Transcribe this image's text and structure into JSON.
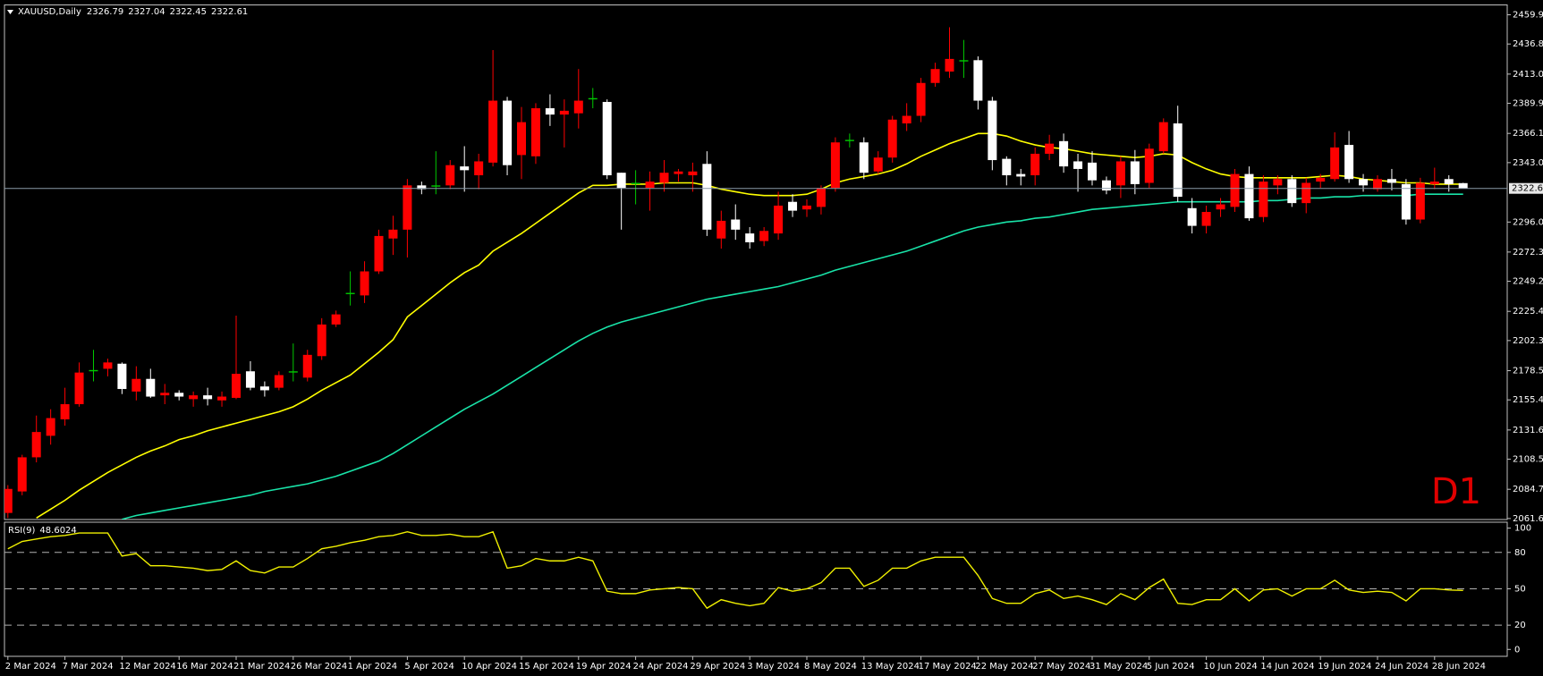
{
  "header": {
    "symbol": "XAUUSD,Daily"
  },
  "chart_data": [
    {
      "type": "candlestick",
      "categories": [
        "2 Mar 2024",
        null,
        null,
        null,
        "7 Mar 2024",
        null,
        null,
        null,
        "12 Mar 2024",
        null,
        null,
        null,
        "16 Mar 2024",
        null,
        null,
        null,
        "21 Mar 2024",
        null,
        null,
        null,
        "26 Mar 2024",
        null,
        null,
        null,
        "1 Apr 2024",
        null,
        null,
        null,
        "5 Apr 2024",
        null,
        null,
        null,
        "10 Apr 2024",
        null,
        null,
        null,
        "15 Apr 2024",
        null,
        null,
        null,
        "19 Apr 2024",
        null,
        null,
        null,
        "24 Apr 2024",
        null,
        null,
        null,
        "29 Apr 2024",
        null,
        null,
        null,
        "3 May 2024",
        null,
        null,
        null,
        "8 May 2024",
        null,
        null,
        null,
        "13 May 2024",
        null,
        null,
        null,
        "17 May 2024",
        null,
        null,
        null,
        "22 May 2024",
        null,
        null,
        null,
        "27 May 2024",
        null,
        null,
        null,
        "31 May 2024",
        null,
        null,
        null,
        "5 Jun 2024",
        null,
        null,
        null,
        "10 Jun 2024",
        null,
        null,
        null,
        "14 Jun 2024",
        null,
        null,
        null,
        "19 Jun 2024",
        null,
        null,
        null,
        "24 Jun 2024",
        null,
        null,
        null,
        "28 Jun 2024",
        null,
        null
      ],
      "open": [
        2066,
        2083,
        2110,
        2127,
        2140,
        2152,
        2178,
        2180,
        2184,
        2162,
        2172,
        2159,
        2161,
        2156,
        2159,
        2155,
        2157,
        2178,
        2166,
        2165,
        2178,
        2173,
        2190,
        2215,
        2239,
        2238,
        2257,
        2283,
        2290,
        2325,
        2324,
        2325,
        2340,
        2333,
        2343,
        2392,
        2349,
        2348,
        2386,
        2381,
        2382,
        2393,
        2391,
        2335,
        2326,
        2323,
        2327,
        2334,
        2333,
        2342,
        2283,
        2298,
        2287,
        2281,
        2287,
        2312,
        2306,
        2308,
        2323,
        2360,
        2359,
        2336,
        2347,
        2374,
        2380,
        2406,
        2415,
        2423,
        2424,
        2392,
        2346,
        2334,
        2333,
        2350,
        2360,
        2344,
        2343,
        2329,
        2325,
        2344,
        2327,
        2352,
        2374,
        2307,
        2293,
        2306,
        2308,
        2334,
        2300,
        2325,
        2330,
        2311,
        2328,
        2330,
        2357,
        2330,
        2322,
        2330,
        2326,
        2298,
        2326,
        2330,
        2326.79
      ],
      "high": [
        2088,
        2112,
        2143,
        2148,
        2165,
        2185,
        2195,
        2188,
        2185,
        2182,
        2180,
        2168,
        2163,
        2162,
        2165,
        2162,
        2222,
        2186,
        2170,
        2178,
        2200,
        2195,
        2220,
        2226,
        2257,
        2265,
        2290,
        2301,
        2330,
        2328,
        2352,
        2345,
        2356,
        2350,
        2432,
        2395,
        2387,
        2390,
        2397,
        2393,
        2417,
        2402,
        2393,
        2335,
        2337,
        2336,
        2345,
        2338,
        2343,
        2352,
        2305,
        2310,
        2292,
        2292,
        2320,
        2318,
        2314,
        2325,
        2363,
        2366,
        2363,
        2352,
        2380,
        2390,
        2410,
        2422,
        2450,
        2440,
        2427,
        2395,
        2348,
        2338,
        2355,
        2365,
        2366,
        2350,
        2352,
        2332,
        2348,
        2353,
        2358,
        2378,
        2388,
        2315,
        2309,
        2315,
        2338,
        2340,
        2333,
        2333,
        2333,
        2331,
        2334,
        2367,
        2368,
        2334,
        2333,
        2338,
        2330,
        2331,
        2339,
        2333,
        2327.04
      ],
      "low": [
        2062,
        2080,
        2106,
        2120,
        2135,
        2150,
        2170,
        2174,
        2160,
        2155,
        2157,
        2152,
        2155,
        2150,
        2151,
        2150,
        2156,
        2163,
        2158,
        2163,
        2170,
        2170,
        2187,
        2213,
        2230,
        2232,
        2255,
        2270,
        2268,
        2318,
        2318,
        2322,
        2320,
        2322,
        2340,
        2333,
        2330,
        2342,
        2372,
        2355,
        2370,
        2386,
        2330,
        2290,
        2310,
        2305,
        2320,
        2328,
        2320,
        2285,
        2275,
        2282,
        2275,
        2277,
        2282,
        2300,
        2300,
        2302,
        2320,
        2355,
        2330,
        2334,
        2343,
        2368,
        2375,
        2403,
        2410,
        2410,
        2385,
        2337,
        2325,
        2325,
        2325,
        2345,
        2335,
        2320,
        2325,
        2318,
        2315,
        2318,
        2323,
        2350,
        2312,
        2287,
        2287,
        2300,
        2304,
        2297,
        2296,
        2318,
        2308,
        2303,
        2323,
        2328,
        2327,
        2320,
        2320,
        2321,
        2294,
        2295,
        2322,
        2320,
        2322.45
      ],
      "close": [
        2085,
        2110,
        2130,
        2141,
        2152,
        2177,
        2179,
        2185,
        2164,
        2172,
        2158,
        2161,
        2158,
        2159,
        2156,
        2158,
        2176,
        2165,
        2163,
        2175,
        2177,
        2191,
        2215,
        2223,
        2240,
        2257,
        2285,
        2290,
        2325,
        2322,
        2325,
        2341,
        2337,
        2344,
        2392,
        2341,
        2375,
        2386,
        2381,
        2384,
        2392,
        2394,
        2333,
        2323,
        2327,
        2328,
        2335,
        2336,
        2336,
        2290,
        2297,
        2290,
        2280,
        2289,
        2309,
        2305,
        2309,
        2323,
        2359,
        2361,
        2335,
        2347,
        2377,
        2380,
        2406,
        2417,
        2425,
        2424,
        2392,
        2345,
        2333,
        2332,
        2350,
        2358,
        2340,
        2338,
        2329,
        2321,
        2344,
        2326,
        2354,
        2375,
        2316,
        2293,
        2304,
        2310,
        2334,
        2299,
        2328,
        2330,
        2311,
        2327,
        2331,
        2355,
        2330,
        2325,
        2330,
        2327,
        2298,
        2327,
        2328,
        2326,
        2322.61
      ],
      "up_color": "#ff0000",
      "down_color": "#ffffff",
      "doji_color": "#00c800",
      "series": [
        {
          "color": "#ffff00",
          "values": [
            null,
            null,
            2062,
            2069,
            2076,
            2084,
            2091,
            2098,
            2104,
            2110,
            2115,
            2119,
            2124,
            2127,
            2131,
            2134,
            2137,
            2140,
            2143,
            2146,
            2150,
            2156,
            2163,
            2169,
            2175,
            2184,
            2193,
            2203,
            2221,
            2230,
            2239,
            2248,
            2256,
            2262,
            2273,
            2280,
            2287,
            2295,
            2303,
            2311,
            2319,
            2325,
            2325,
            2326,
            2326,
            2326,
            2327,
            2327,
            2327,
            2325,
            2322,
            2320,
            2318,
            2317,
            2317,
            2317,
            2318,
            2322,
            2327,
            2330,
            2332,
            2334,
            2337,
            2342,
            2348,
            2353,
            2358,
            2362,
            2366,
            2366,
            2364,
            2360,
            2357,
            2355,
            2354,
            2352,
            2350,
            2349,
            2348,
            2347,
            2348,
            2350,
            2349,
            2343,
            2338,
            2334,
            2332,
            2331,
            2331,
            2331,
            2331,
            2331,
            2332,
            2333,
            2332,
            2330,
            2329,
            2328,
            2327,
            2327,
            2326,
            2326,
            2326
          ]
        },
        {
          "color": "#19e3a8",
          "values": [
            null,
            null,
            null,
            null,
            null,
            null,
            null,
            null,
            2061,
            2064,
            2066,
            2068,
            2070,
            2072,
            2074,
            2076,
            2078,
            2080,
            2083,
            2085,
            2087,
            2089,
            2092,
            2095,
            2099,
            2103,
            2107,
            2113,
            2120,
            2127,
            2134,
            2141,
            2148,
            2154,
            2160,
            2167,
            2174,
            2181,
            2188,
            2195,
            2202,
            2208,
            2213,
            2217,
            2220,
            2223,
            2226,
            2229,
            2232,
            2235,
            2237,
            2239,
            2241,
            2243,
            2245,
            2248,
            2251,
            2254,
            2258,
            2261,
            2264,
            2267,
            2270,
            2273,
            2277,
            2281,
            2285,
            2289,
            2292,
            2294,
            2296,
            2297,
            2299,
            2300,
            2302,
            2304,
            2306,
            2307,
            2308,
            2309,
            2310,
            2311,
            2312,
            2312,
            2312,
            2312,
            2312,
            2312,
            2313,
            2313,
            2314,
            2315,
            2315,
            2316,
            2316,
            2317,
            2317,
            2317,
            2317,
            2318,
            2318,
            2318,
            2318
          ]
        }
      ],
      "ylim": [
        2060.8,
        2467.7
      ],
      "yticks": [
        {
          "value": 2459.9,
          "label": "2459.90"
        },
        {
          "value": 2436.8,
          "label": "2436.80"
        },
        {
          "value": 2413,
          "label": "2413.00"
        },
        {
          "value": 2389.9,
          "label": "2389.90"
        },
        {
          "value": 2366.1,
          "label": "2366.10"
        },
        {
          "value": 2343,
          "label": "2343.00"
        },
        {
          "value": 2296,
          "label": "2296.00"
        },
        {
          "value": 2272.3,
          "label": "2272.30"
        },
        {
          "value": 2249.2,
          "label": "2249.20"
        },
        {
          "value": 2225.4,
          "label": "2225.40"
        },
        {
          "value": 2202.3,
          "label": "2202.30"
        },
        {
          "value": 2178.5,
          "label": "2178.50"
        },
        {
          "value": 2155.4,
          "label": "2155.40"
        },
        {
          "value": 2131.6,
          "label": "2131.60"
        },
        {
          "value": 2108.5,
          "label": "2108.50"
        },
        {
          "value": 2084.7,
          "label": "2084.70"
        },
        {
          "value": 2061.6,
          "label": "2061.60"
        }
      ],
      "annotation": "D1",
      "annotation_color": "#e00000"
    },
    {
      "type": "line",
      "title": "RSI(9)",
      "color": "#f0f000",
      "values": [
        83,
        89,
        91,
        93,
        94,
        96,
        96,
        96,
        77,
        79,
        69,
        69,
        68,
        67,
        65,
        66,
        73,
        65,
        63,
        68,
        68,
        75,
        83,
        85,
        88,
        90,
        93,
        94,
        97,
        94,
        94,
        95,
        93,
        93,
        97,
        67,
        69,
        75,
        73,
        73,
        76,
        73,
        48,
        46,
        46,
        49,
        50,
        51,
        50,
        34,
        41,
        38,
        36,
        38,
        51,
        48,
        50,
        55,
        67,
        67,
        52,
        57,
        67,
        67,
        73,
        76,
        76,
        76,
        61,
        42,
        38,
        38,
        46,
        49,
        42,
        44,
        41,
        37,
        46,
        41,
        51,
        58,
        38,
        37,
        41,
        41,
        50,
        40,
        49,
        50,
        44,
        50,
        50,
        57,
        49,
        47,
        48,
        47,
        40,
        50,
        50,
        49,
        48.6024
      ],
      "ylim": [
        -5.7,
        104.9
      ],
      "yticks": [
        100,
        80,
        50,
        20,
        0
      ],
      "levels": [
        80,
        50,
        20
      ]
    }
  ]
}
